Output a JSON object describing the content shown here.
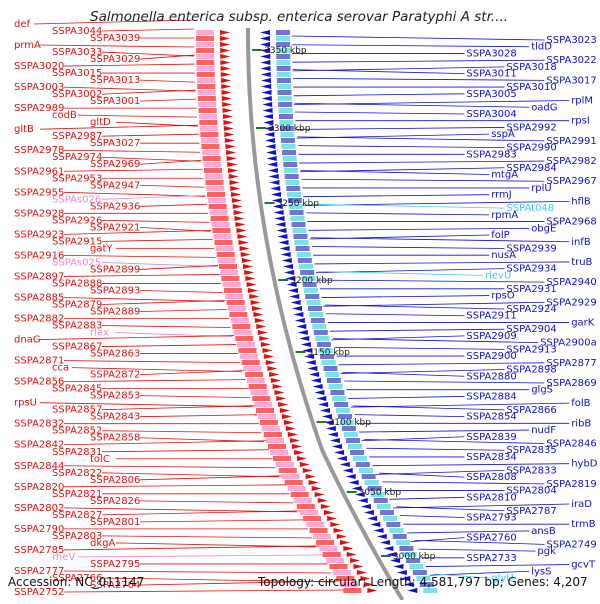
{
  "title": "Salmonella enterica subsp. enterica serovar Paratyphi A str....",
  "footer": {
    "accession": "Accession: NC_011147",
    "summary": "Topology: circular; Length: 4,581,797 bp; Genes: 4,207"
  },
  "colors": {
    "forward": "#e01010",
    "reverse": "#1010d0",
    "rna_forward": "#ee88cc",
    "rna_reverse": "#44ccee",
    "backbone": "#999999",
    "tick": "#227722"
  },
  "scale_ticks": [
    "3350 kbp",
    "3300 kbp",
    "3250 kbp",
    "3200 kbp",
    "3150 kbp",
    "3100 kbp",
    "3050 kbp",
    "3000 kbp"
  ],
  "left_labels": [
    "def",
    "SSPA3044",
    "SSPA3039",
    "prmA",
    "SSPA3033",
    "SSPA3029",
    "SSPA3020",
    "SSPA3015",
    "SSPA3013",
    "SSPA3003",
    "SSPA3002",
    "SSPA3001",
    "SSPA2989",
    "codB",
    "gltD",
    "gltB",
    "SSPA2987",
    "SSPA3027",
    "SSPA2978",
    "SSPA2974",
    "SSPA2969",
    "SSPA2961",
    "SSPA2953",
    "SSPA2947",
    "SSPA2955",
    "SSPAs026",
    "SSPA2936",
    "SSPA2928",
    "SSPA2926",
    "SSPA2921",
    "SSPA2923",
    "SSPA2915",
    "gatY",
    "SSPA2916",
    "SSPAs025",
    "SSPA2899",
    "SSPA2897",
    "SSPA2888",
    "SSPA2893",
    "SSPA2885",
    "SSPA2879",
    "SSPA2889",
    "SSPA2882",
    "SSPA2883",
    "rlex",
    "dnaG",
    "SSPA2867",
    "SSPA2863",
    "SSPA2871",
    "cca",
    "SSPA2872",
    "SSPA2856",
    "SSPA2845",
    "SSPA2853",
    "rpsU",
    "SSPA2857",
    "SSPA2843",
    "SSPA2832",
    "SSPA2852",
    "SSPA2858",
    "SSPA2842",
    "SSPA2831",
    "tolC",
    "SSPA2844",
    "SSPA2822",
    "SSPA2806",
    "SSPA2820",
    "SSPA2821",
    "SSPA2826",
    "SSPA2802",
    "SSPA2827",
    "SSPA2801",
    "SSPA2790",
    "SSPA2803",
    "dkgA",
    "SSPA2785",
    "rheV",
    "SSPA2795",
    "SSPA2777",
    "SSPA2766",
    "SSPA2764",
    "SSPA2752"
  ],
  "right_labels": [
    "SSPA3023",
    "tldD",
    "SSPA3028",
    "SSPA3022",
    "SSPA3018",
    "SSPA3011",
    "SSPA3017",
    "SSPA3010",
    "SSPA3005",
    "rplM",
    "oadG",
    "SSPA3004",
    "rpsI",
    "SSPA2992",
    "sspA",
    "SSPA2991",
    "SSPA2990",
    "SSPA2983",
    "SSPA2982",
    "SSPA2984",
    "mtgA",
    "SSPA2967",
    "rplU",
    "rrmJ",
    "hflB",
    "SSPAt048",
    "rpmA",
    "SSPA2968",
    "obgE",
    "folP",
    "infB",
    "SSPA2939",
    "nusA",
    "truB",
    "SSPA2934",
    "rlevU",
    "SSPA2940",
    "SSPA2931",
    "rpsO",
    "SSPA2929",
    "SSPA2924",
    "SSPA2911",
    "garK",
    "SSPA2904",
    "SSPA2909",
    "SSPA2900a",
    "SSPA2913",
    "SSPA2900",
    "SSPA2877",
    "SSPA2898",
    "SSPA2880",
    "SSPA2869",
    "glgS",
    "SSPA2884",
    "folB",
    "SSPA2866",
    "SSPA2854",
    "ribB",
    "nudF",
    "SSPA2839",
    "SSPA2846",
    "SSPA2835",
    "SSPA2834",
    "hybD",
    "SSPA2833",
    "SSPA2808",
    "SSPA2819",
    "SSPA2804",
    "SSPA2810",
    "iraD",
    "SSPA2787",
    "SSPA2793",
    "trmB",
    "ansB",
    "SSPA2760",
    "SSPA2749",
    "pgk",
    "SSPA2733",
    "gcvT",
    "lysS",
    "glyU"
  ]
}
